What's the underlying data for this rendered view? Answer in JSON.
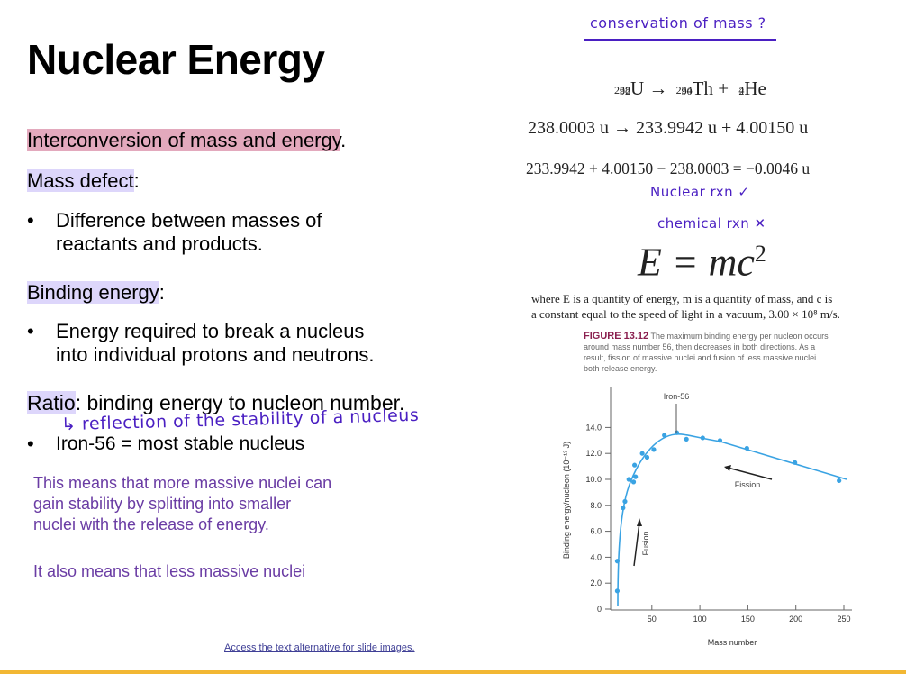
{
  "slide": {
    "title": "Nuclear Energy",
    "interconversion": {
      "highlighted": "Interconversion of mass and energy",
      "rest": "."
    },
    "mass_defect": {
      "heading": "Mass defect",
      "colon": ":",
      "bullet_line1": "Difference between masses of",
      "bullet_line2": "reactants and products."
    },
    "binding_energy": {
      "heading": "Binding energy",
      "colon": ":",
      "bullet_line1": "Energy required to break a nucleus",
      "bullet_line2": "into individual protons and neutrons."
    },
    "ratio": {
      "heading": "Ratio",
      "rest": ": binding energy to nucleon number.",
      "handwritten_note": "↳ reflection of the stability of a nucleus",
      "bullet": "Iron-56 = most stable nucleus"
    },
    "purple_text": {
      "para1_line1": "This means that more massive nuclei can",
      "para1_line2": "gain stability by splitting into smaller",
      "para1_line3": "nuclei with the release of energy.",
      "para2_line1": "It also means that less massive nuclei"
    },
    "bullet_glyph": "•",
    "footer_link": "Access the text alternative for slide images."
  },
  "right": {
    "handwritten_title": "conservation of mass ?",
    "equation1": {
      "u": {
        "a": "238",
        "z": "92",
        "sym": "U"
      },
      "arrow": "→",
      "th": {
        "a": "234",
        "z": "90",
        "sym": "Th"
      },
      "plus": "+",
      "he": {
        "a": "4",
        "z": "2",
        "sym": "He"
      }
    },
    "equation2": "238.0003 u → 233.9942 u + 4.00150 u",
    "equation3": "233.9942 + 4.00150 − 238.0003 = −0.0046 u",
    "note_nuclear": "Nuclear rxn ✓",
    "note_chemical": "chemical rxn ✕",
    "emc2": {
      "lhs": "E = mc",
      "exp": "2"
    },
    "where_line1": "where E is a quantity of energy, m is a quantity of mass, and c is",
    "where_line2": "a constant equal to the speed of light in a vacuum, 3.00 × 10⁸ m/s.",
    "figure": {
      "label": "FIGURE 13.12",
      "caption_line1": " The maximum binding energy per nucleon occurs",
      "caption_line2": "around mass number 56, then decreases in both directions. As a",
      "caption_line3": "result, fission of massive nuclei and fusion of less massive nuclei",
      "caption_line4": "both release energy."
    }
  },
  "colors": {
    "pink_highlight": "#e3a9bd",
    "lavender_highlight": "#ddd6fb",
    "handwriting": "#4a1fc2",
    "purple_text": "#6a3ca4",
    "curve": "#3aa3e3",
    "figure_label": "#8a1e4e",
    "bottom_bar": "#f2b733"
  },
  "chart_data": {
    "type": "scatter",
    "title": "",
    "xlabel": "Mass number",
    "ylabel": "Binding energy/nucleon (10⁻¹³ J)",
    "xlim": [
      0,
      260
    ],
    "ylim": [
      0,
      16
    ],
    "xticks": [
      "50",
      "100",
      "150",
      "200",
      "250"
    ],
    "yticks": [
      "0",
      "2.0",
      "4.0",
      "6.0",
      "8.0",
      "10.0",
      "12.0",
      "14.0"
    ],
    "grid": false,
    "legend": null,
    "series": [
      {
        "name": "Binding energy per nucleon",
        "points": [
          [
            14,
            1.4
          ],
          [
            14,
            3.7
          ],
          [
            20,
            7.8
          ],
          [
            22,
            8.3
          ],
          [
            26,
            10.0
          ],
          [
            31,
            9.8
          ],
          [
            33,
            10.2
          ],
          [
            32,
            11.1
          ],
          [
            40,
            12.0
          ],
          [
            45,
            11.7
          ],
          [
            52,
            12.3
          ],
          [
            63,
            13.4
          ],
          [
            76,
            13.6
          ],
          [
            86,
            13.1
          ],
          [
            103,
            13.2
          ],
          [
            121,
            13.0
          ],
          [
            149,
            12.4
          ],
          [
            199,
            11.3
          ],
          [
            245,
            9.9
          ]
        ]
      }
    ],
    "annotations": [
      {
        "text": "Iron-56",
        "x": 76,
        "y": 13.6
      },
      {
        "text": "Fission",
        "arrow": "right-to-left",
        "x": 150,
        "y": 10.1
      },
      {
        "text": "Fusion",
        "arrow": "upward",
        "x": 35,
        "y": 5.5
      }
    ]
  }
}
